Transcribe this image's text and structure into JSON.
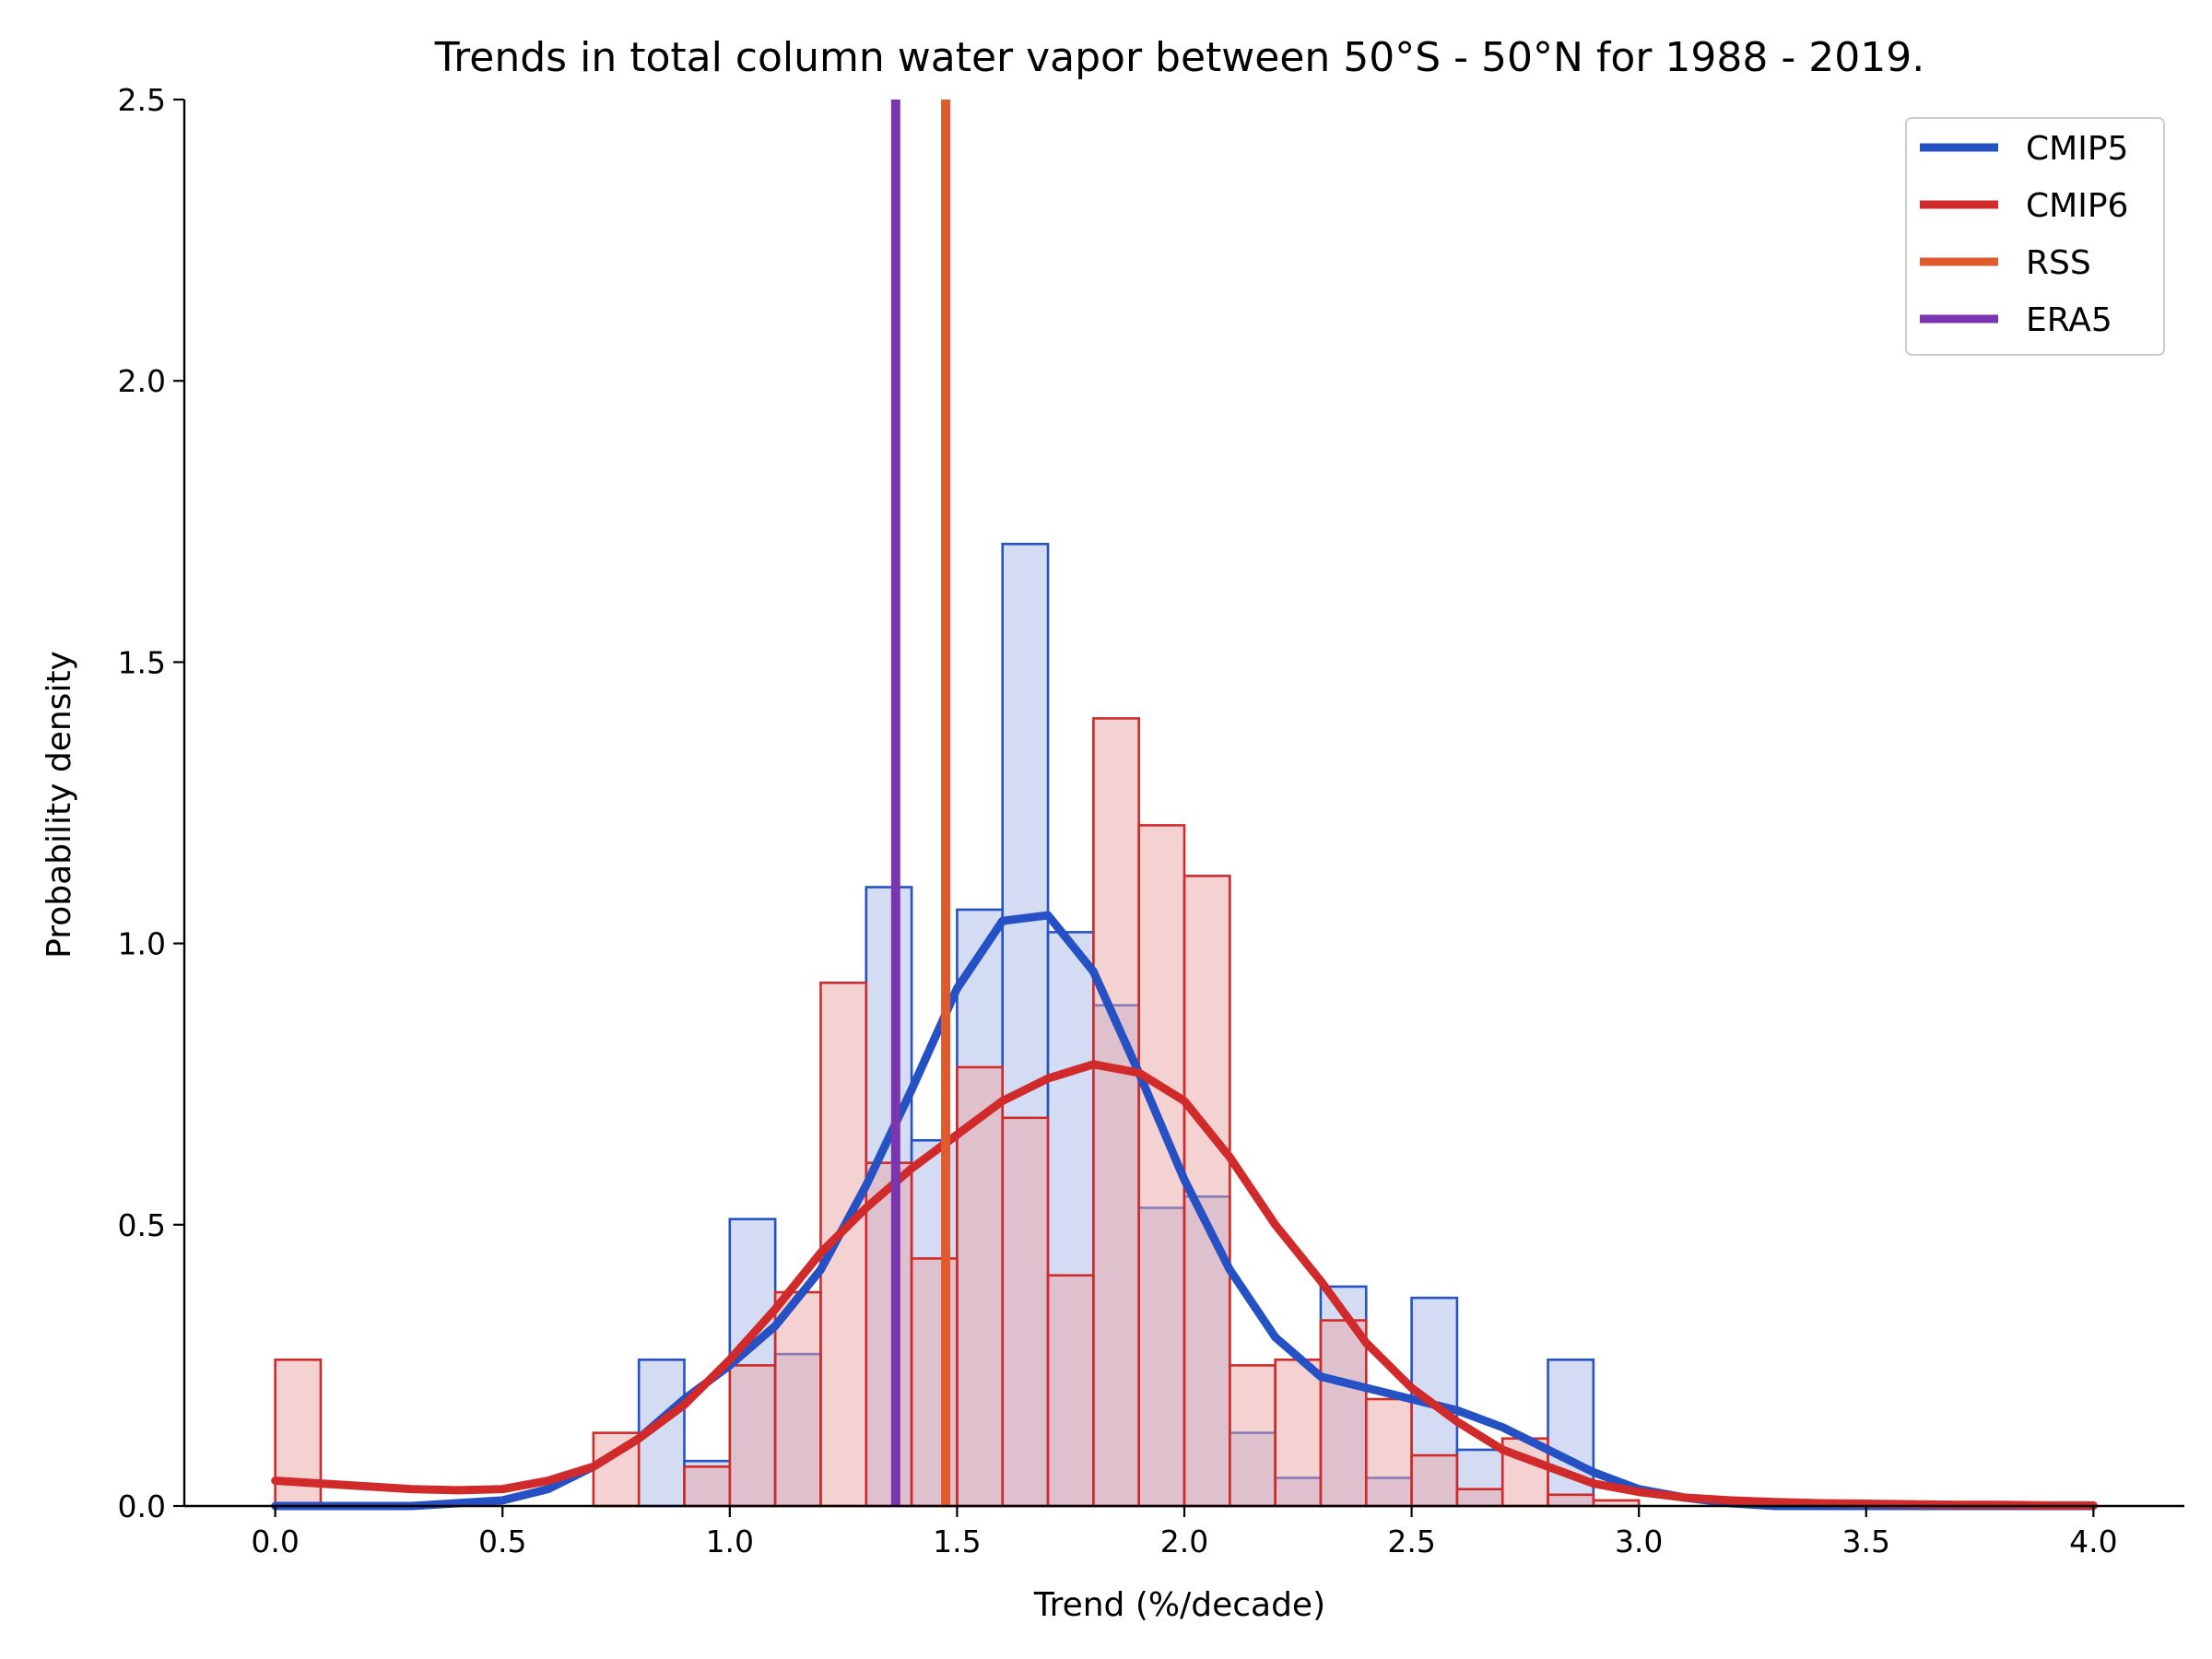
{
  "chart_data": {
    "type": "histogram",
    "title": "Trends in total column water vapor between 50°S - 50°N for 1988 - 2019.",
    "xlabel": "Trend (%/decade)",
    "ylabel": "Probability density",
    "xlim": [
      -0.2,
      4.2
    ],
    "ylim": [
      0,
      2.5
    ],
    "xticks": [
      0.0,
      0.5,
      1.0,
      1.5,
      2.0,
      2.5,
      3.0,
      3.5,
      4.0
    ],
    "xtick_labels": [
      "0.0",
      "0.5",
      "1.0",
      "1.5",
      "2.0",
      "2.5",
      "3.0",
      "3.5",
      "4.0"
    ],
    "yticks": [
      0.0,
      0.5,
      1.0,
      1.5,
      2.0,
      2.5
    ],
    "ytick_labels": [
      "0.0",
      "0.5",
      "1.0",
      "1.5",
      "2.0",
      "2.5"
    ],
    "grid": false,
    "legend_position": "top-right",
    "bin_width": 0.1,
    "histograms": [
      {
        "name": "CMIP5",
        "edge_color": "#2651C4",
        "fill_color": "#D2DAF3",
        "bin_starts": [
          0.8,
          0.9,
          1.0,
          1.1,
          1.3,
          1.4,
          1.5,
          1.6,
          1.7,
          1.8,
          1.9,
          2.0,
          2.1,
          2.2,
          2.3,
          2.4,
          2.5,
          2.6,
          2.8
        ],
        "values": [
          0.26,
          0.08,
          0.51,
          0.27,
          1.1,
          0.65,
          1.06,
          1.71,
          1.02,
          0.89,
          0.53,
          0.55,
          0.13,
          0.05,
          0.39,
          0.05,
          0.37,
          0.1,
          0.26
        ]
      },
      {
        "name": "CMIP6",
        "edge_color": "#D02A2A",
        "fill_color": "#EAA6A6",
        "bin_starts": [
          0.0,
          0.7,
          0.9,
          1.0,
          1.1,
          1.2,
          1.3,
          1.4,
          1.5,
          1.6,
          1.7,
          1.8,
          1.9,
          2.0,
          2.1,
          2.2,
          2.3,
          2.4,
          2.5,
          2.6,
          2.7,
          2.8,
          2.9
        ],
        "values": [
          0.26,
          0.13,
          0.07,
          0.25,
          0.38,
          0.93,
          0.61,
          0.44,
          0.78,
          0.69,
          0.41,
          1.4,
          1.21,
          1.12,
          0.25,
          0.26,
          0.33,
          0.19,
          0.09,
          0.03,
          0.12,
          0.02,
          0.01
        ]
      }
    ],
    "series": [
      {
        "name": "CMIP5",
        "color": "#2651C4",
        "x": [
          0.0,
          0.1,
          0.2,
          0.3,
          0.4,
          0.5,
          0.6,
          0.7,
          0.8,
          0.9,
          1.0,
          1.1,
          1.2,
          1.3,
          1.4,
          1.5,
          1.6,
          1.7,
          1.8,
          1.9,
          2.0,
          2.1,
          2.2,
          2.3,
          2.4,
          2.5,
          2.6,
          2.7,
          2.8,
          2.9,
          3.0,
          3.1,
          3.2,
          3.3,
          3.4,
          3.5,
          3.6,
          3.7,
          3.8,
          3.9,
          4.0
        ],
        "y": [
          0.0,
          0.0,
          0.0,
          0.0,
          0.005,
          0.01,
          0.03,
          0.07,
          0.12,
          0.19,
          0.25,
          0.32,
          0.42,
          0.57,
          0.74,
          0.92,
          1.04,
          1.05,
          0.95,
          0.77,
          0.58,
          0.42,
          0.3,
          0.23,
          0.21,
          0.19,
          0.17,
          0.14,
          0.1,
          0.06,
          0.03,
          0.015,
          0.005,
          0.0,
          0.0,
          0.0,
          0.0,
          0.0,
          0.0,
          0.0,
          0.0
        ]
      },
      {
        "name": "CMIP6",
        "color": "#D02A2A",
        "x": [
          0.0,
          0.1,
          0.2,
          0.3,
          0.4,
          0.5,
          0.6,
          0.7,
          0.8,
          0.9,
          1.0,
          1.1,
          1.2,
          1.3,
          1.4,
          1.5,
          1.6,
          1.7,
          1.8,
          1.9,
          2.0,
          2.1,
          2.2,
          2.3,
          2.4,
          2.5,
          2.6,
          2.7,
          2.8,
          2.9,
          3.0,
          3.1,
          3.2,
          3.3,
          3.4,
          3.5,
          3.6,
          3.7,
          3.8,
          3.9,
          4.0
        ],
        "y": [
          0.045,
          0.04,
          0.035,
          0.03,
          0.028,
          0.03,
          0.045,
          0.07,
          0.12,
          0.18,
          0.26,
          0.35,
          0.45,
          0.53,
          0.6,
          0.66,
          0.72,
          0.76,
          0.785,
          0.77,
          0.72,
          0.62,
          0.5,
          0.4,
          0.29,
          0.21,
          0.15,
          0.1,
          0.07,
          0.04,
          0.025,
          0.015,
          0.01,
          0.007,
          0.005,
          0.004,
          0.003,
          0.002,
          0.002,
          0.001,
          0.001
        ]
      }
    ],
    "vertical_lines": [
      {
        "name": "RSS",
        "x": 1.475,
        "color": "#E05A2E"
      },
      {
        "name": "ERA5",
        "x": 1.365,
        "color": "#7B35AF"
      }
    ],
    "legend": [
      {
        "label": "CMIP5",
        "color": "#2651C4"
      },
      {
        "label": "CMIP6",
        "color": "#D02A2A"
      },
      {
        "label": "RSS",
        "color": "#E05A2E"
      },
      {
        "label": "ERA5",
        "color": "#7B35AF"
      }
    ]
  }
}
